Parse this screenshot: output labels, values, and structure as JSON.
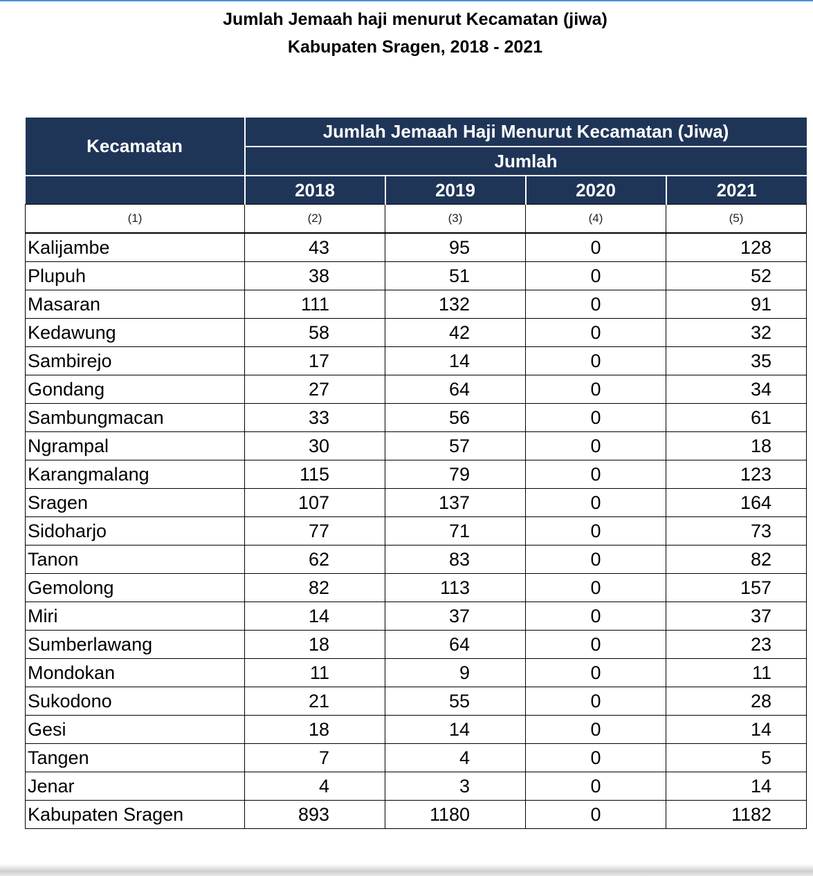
{
  "title": {
    "line1": "Jumlah Jemaah haji menurut Kecamatan (jiwa)",
    "line2": "Kabupaten Sragen, 2018 - 2021"
  },
  "table": {
    "header_kecamatan": "Kecamatan",
    "header_group": "Jumlah Jemaah Haji Menurut Kecamatan (Jiwa)",
    "header_sub": "Jumlah",
    "years": [
      "2018",
      "2019",
      "2020",
      "2021"
    ],
    "col_numbers": [
      "(1)",
      "(2)",
      "(3)",
      "(4)",
      "(5)"
    ],
    "rows": [
      {
        "kecamatan": "Kalijambe",
        "y2018": "43",
        "y2019": "95",
        "y2020": "0",
        "y2021": "128"
      },
      {
        "kecamatan": "Plupuh",
        "y2018": "38",
        "y2019": "51",
        "y2020": "0",
        "y2021": "52"
      },
      {
        "kecamatan": "Masaran",
        "y2018": "111",
        "y2019": "132",
        "y2020": "0",
        "y2021": "91"
      },
      {
        "kecamatan": "Kedawung",
        "y2018": "58",
        "y2019": "42",
        "y2020": "0",
        "y2021": "32"
      },
      {
        "kecamatan": "Sambirejo",
        "y2018": "17",
        "y2019": "14",
        "y2020": "0",
        "y2021": "35"
      },
      {
        "kecamatan": "Gondang",
        "y2018": "27",
        "y2019": "64",
        "y2020": "0",
        "y2021": "34"
      },
      {
        "kecamatan": "Sambungmacan",
        "y2018": "33",
        "y2019": "56",
        "y2020": "0",
        "y2021": "61"
      },
      {
        "kecamatan": "Ngrampal",
        "y2018": "30",
        "y2019": "57",
        "y2020": "0",
        "y2021": "18"
      },
      {
        "kecamatan": "Karangmalang",
        "y2018": "115",
        "y2019": "79",
        "y2020": "0",
        "y2021": "123"
      },
      {
        "kecamatan": "Sragen",
        "y2018": "107",
        "y2019": "137",
        "y2020": "0",
        "y2021": "164"
      },
      {
        "kecamatan": "Sidoharjo",
        "y2018": "77",
        "y2019": "71",
        "y2020": "0",
        "y2021": "73"
      },
      {
        "kecamatan": "Tanon",
        "y2018": "62",
        "y2019": "83",
        "y2020": "0",
        "y2021": "82"
      },
      {
        "kecamatan": "Gemolong",
        "y2018": "82",
        "y2019": "113",
        "y2020": "0",
        "y2021": "157"
      },
      {
        "kecamatan": "Miri",
        "y2018": "14",
        "y2019": "37",
        "y2020": "0",
        "y2021": "37"
      },
      {
        "kecamatan": "Sumberlawang",
        "y2018": "18",
        "y2019": "64",
        "y2020": "0",
        "y2021": "23"
      },
      {
        "kecamatan": "Mondokan",
        "y2018": "11",
        "y2019": "9",
        "y2020": "0",
        "y2021": "11"
      },
      {
        "kecamatan": "Sukodono",
        "y2018": "21",
        "y2019": "55",
        "y2020": "0",
        "y2021": "28"
      },
      {
        "kecamatan": "Gesi",
        "y2018": "18",
        "y2019": "14",
        "y2020": "0",
        "y2021": "14"
      },
      {
        "kecamatan": "Tangen",
        "y2018": "7",
        "y2019": "4",
        "y2020": "0",
        "y2021": "5"
      },
      {
        "kecamatan": "Jenar",
        "y2018": "4",
        "y2019": "3",
        "y2020": "0",
        "y2021": "14"
      },
      {
        "kecamatan": "Kabupaten Sragen",
        "y2018": "893",
        "y2019": "1180",
        "y2020": "0",
        "y2021": "1182"
      }
    ]
  },
  "colors": {
    "header_bg": "#1f3558",
    "header_text": "#ffffff",
    "top_rule": "#4a90d0"
  }
}
